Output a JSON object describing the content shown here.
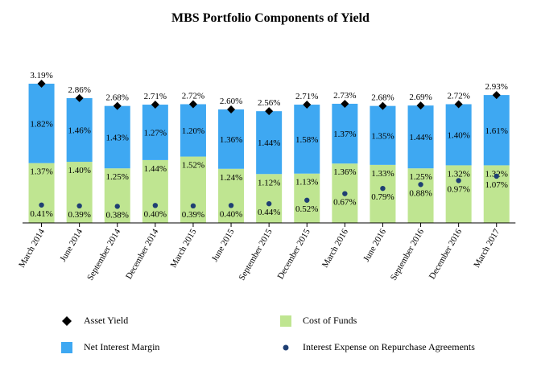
{
  "chart_data": {
    "type": "bar",
    "title": "MBS Portfolio Components of Yield",
    "categories": [
      "March 2014",
      "June 2014",
      "September 2014",
      "December 2014",
      "March 2015",
      "June 2015",
      "September 2015",
      "December 2015",
      "March 2016",
      "June 2016",
      "September 2016",
      "December 2016",
      "March 2017"
    ],
    "stacked": true,
    "ylim": [
      0,
      3.19
    ],
    "series": [
      {
        "name": "Cost of Funds",
        "kind": "stacked-bar",
        "color": "#bfe591",
        "values": [
          1.37,
          1.4,
          1.25,
          1.44,
          1.52,
          1.24,
          1.12,
          1.13,
          1.36,
          1.33,
          1.25,
          1.32,
          1.32
        ],
        "labels": [
          "1.37%",
          "1.40%",
          "1.25%",
          "1.44%",
          "1.52%",
          "1.24%",
          "1.12%",
          "1.13%",
          "1.36%",
          "1.33%",
          "1.25%",
          "1.32%",
          "1.32%"
        ]
      },
      {
        "name": "Net Interest Margin",
        "kind": "stacked-bar",
        "color": "#3ea8f2",
        "values": [
          1.82,
          1.46,
          1.43,
          1.27,
          1.2,
          1.36,
          1.44,
          1.58,
          1.37,
          1.35,
          1.44,
          1.4,
          1.61
        ],
        "labels": [
          "1.82%",
          "1.46%",
          "1.43%",
          "1.27%",
          "1.20%",
          "1.36%",
          "1.44%",
          "1.58%",
          "1.37%",
          "1.35%",
          "1.44%",
          "1.40%",
          "1.61%"
        ]
      },
      {
        "name": "Asset Yield",
        "kind": "marker",
        "marker": "diamond",
        "color": "#000000",
        "values": [
          3.19,
          2.86,
          2.68,
          2.71,
          2.72,
          2.6,
          2.56,
          2.71,
          2.73,
          2.68,
          2.69,
          2.72,
          2.93
        ],
        "labels": [
          "3.19%",
          "2.86%",
          "2.68%",
          "2.71%",
          "2.72%",
          "2.60%",
          "2.56%",
          "2.71%",
          "2.73%",
          "2.68%",
          "2.69%",
          "2.72%",
          "2.93%"
        ]
      },
      {
        "name": "Interest Expense on Repurchase Agreements",
        "kind": "marker",
        "marker": "dot",
        "color": "#1f3f73",
        "values": [
          0.41,
          0.39,
          0.38,
          0.4,
          0.39,
          0.4,
          0.44,
          0.52,
          0.67,
          0.79,
          0.88,
          0.97,
          1.07
        ],
        "labels": [
          "0.41%",
          "0.39%",
          "0.38%",
          "0.40%",
          "0.39%",
          "0.40%",
          "0.44%",
          "0.52%",
          "0.67%",
          "0.79%",
          "0.88%",
          "0.97%",
          "1.07%"
        ]
      }
    ],
    "legend": {
      "position": "bottom",
      "items": [
        "Asset Yield",
        "Cost of Funds",
        "Net Interest Margin",
        "Interest Expense on Repurchase Agreements"
      ]
    }
  }
}
